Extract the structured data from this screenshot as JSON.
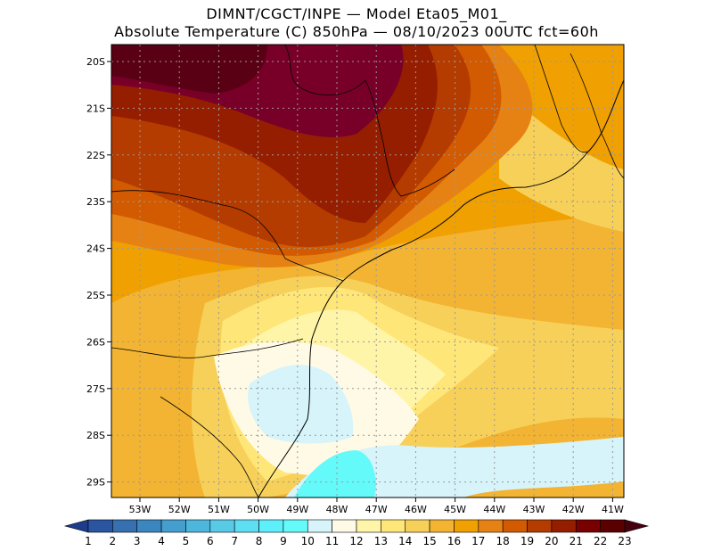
{
  "title_line1": "DIMNT/CGCT/INPE —  Model Eta05_M01_",
  "title_line2": "Absolute Temperature (C) 850hPa —  08/10/2023 00UTC fct=60h",
  "lat_labels": [
    "20S",
    "21S",
    "22S",
    "23S",
    "24S",
    "25S",
    "26S",
    "27S",
    "28S",
    "29S"
  ],
  "lon_labels": [
    "53W",
    "52W",
    "51W",
    "50W",
    "49W",
    "48W",
    "47W",
    "46W",
    "45W",
    "44W",
    "43W",
    "42W",
    "41W"
  ],
  "colorbar": {
    "labels": [
      "1",
      "2",
      "3",
      "4",
      "5",
      "6",
      "7",
      "8",
      "9",
      "10",
      "11",
      "12",
      "13",
      "14",
      "15",
      "16",
      "17",
      "18",
      "19",
      "20",
      "21",
      "22",
      "23"
    ],
    "colors": [
      "#1e3c8c",
      "#2a55a0",
      "#3670b0",
      "#3c86c0",
      "#449ece",
      "#4cb6dc",
      "#58cae6",
      "#5edef2",
      "#5ef0fa",
      "#64fafa",
      "#d6f4fa",
      "#fffae6",
      "#fff5a8",
      "#ffe678",
      "#f7d05a",
      "#f2b432",
      "#f0a000",
      "#e68214",
      "#d25a00",
      "#b43c00",
      "#961e00",
      "#780000",
      "#5a0000",
      "#460010"
    ]
  },
  "colors": {
    "t21": "#780028",
    "t20": "#961e00",
    "t19": "#b43c00",
    "t18": "#d25a00",
    "t17": "#e68214",
    "t16": "#f0a000",
    "t15": "#f2b432",
    "t14": "#f7d05a",
    "t13": "#ffe678",
    "t12": "#fff5a8",
    "t11": "#fffae6",
    "t10": "#d6f4fa",
    "t9": "#64fafa",
    "t22": "#5a0014",
    "coast": "#000000",
    "grid": "#999999"
  }
}
